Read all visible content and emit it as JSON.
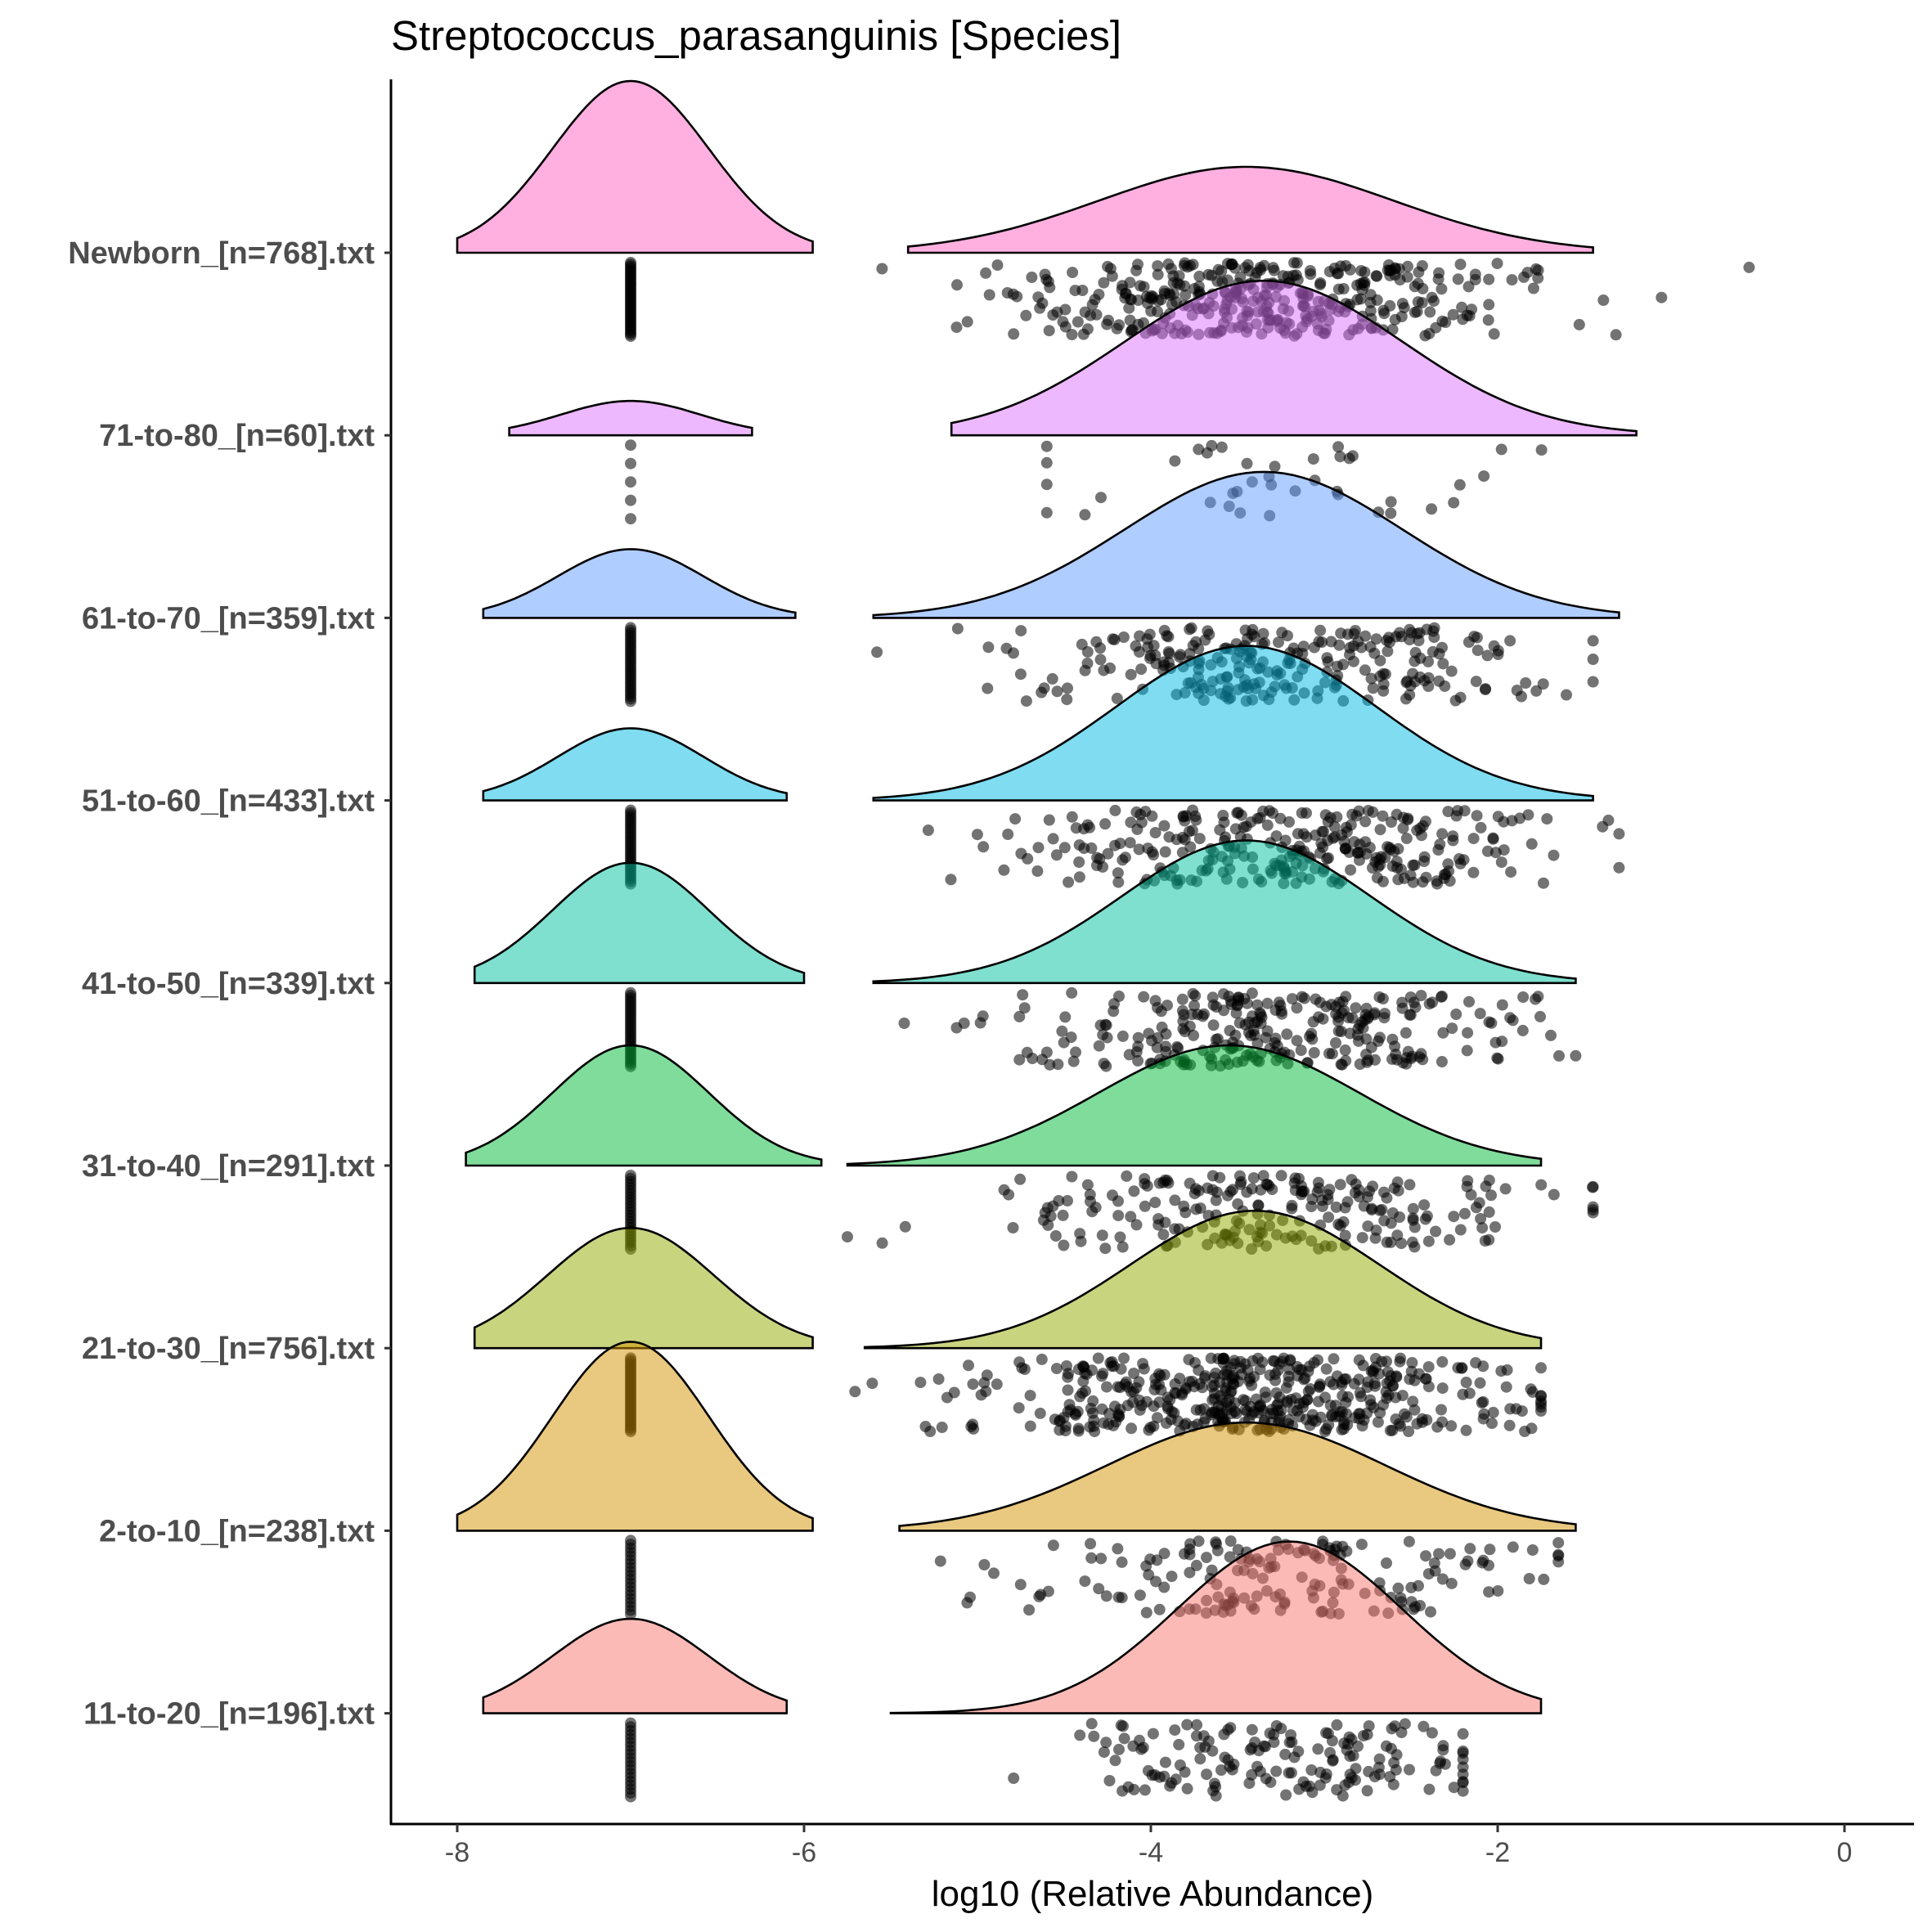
{
  "chart_data": {
    "type": "raincloud",
    "title": "Streptococcus_parasanguinis [Species]",
    "xlabel": "log10 (Relative Abundance)",
    "ylabel": "",
    "xlim": [
      -8.4,
      0.5
    ],
    "xticks": [
      -8,
      -6,
      -4,
      -2,
      0
    ],
    "xtick_labels": [
      "-8",
      "-6",
      "-4",
      "-2",
      "0"
    ],
    "grid": false,
    "legend": "none",
    "groups": [
      {
        "label": "Newborn_[n=768].txt",
        "n": 768,
        "color": "#FF61C3",
        "zero_peak": {
          "center": -7.0,
          "sd": 0.45,
          "height": 1.0,
          "range": [
            -8.0,
            -5.95
          ]
        },
        "main_peak": {
          "center": -3.45,
          "sd": 0.85,
          "height": 0.5,
          "range": [
            -5.4,
            -1.45
          ]
        },
        "points": {
          "count": 380,
          "zero_count": 40,
          "mean": -3.3,
          "sd": 0.75,
          "min": -5.55,
          "max": -0.55
        }
      },
      {
        "label": "71-to-80_[n=60].txt",
        "n": 60,
        "color": "#DB72FB",
        "zero_peak": {
          "center": -7.0,
          "sd": 0.4,
          "height": 0.2,
          "range": [
            -7.7,
            -6.3
          ]
        },
        "main_peak": {
          "center": -3.35,
          "sd": 0.8,
          "height": 0.9,
          "range": [
            -5.15,
            -1.2
          ]
        },
        "points": {
          "count": 40,
          "zero_count": 5,
          "mean": -3.3,
          "sd": 0.75,
          "min": -4.6,
          "max": -1.55
        }
      },
      {
        "label": "61-to-70_[n=359].txt",
        "n": 359,
        "color": "#619CFF",
        "zero_peak": {
          "center": -7.0,
          "sd": 0.42,
          "height": 0.4,
          "range": [
            -7.85,
            -6.05
          ]
        },
        "main_peak": {
          "center": -3.35,
          "sd": 0.8,
          "height": 0.85,
          "range": [
            -5.6,
            -1.3
          ]
        },
        "points": {
          "count": 260,
          "zero_count": 30,
          "mean": -3.3,
          "sd": 0.8,
          "min": -5.7,
          "max": -1.45
        }
      },
      {
        "label": "51-to-60_[n=433].txt",
        "n": 433,
        "color": "#00B9E3",
        "zero_peak": {
          "center": -7.0,
          "sd": 0.42,
          "height": 0.42,
          "range": [
            -7.85,
            -6.1
          ]
        },
        "main_peak": {
          "center": -3.45,
          "sd": 0.75,
          "height": 0.9,
          "range": [
            -5.6,
            -1.45
          ]
        },
        "points": {
          "count": 300,
          "zero_count": 30,
          "mean": -3.3,
          "sd": 0.8,
          "min": -5.6,
          "max": -1.3
        }
      },
      {
        "label": "41-to-50_[n=339].txt",
        "n": 339,
        "color": "#00C19F",
        "zero_peak": {
          "center": -7.0,
          "sd": 0.45,
          "height": 0.7,
          "range": [
            -7.9,
            -6.0
          ]
        },
        "main_peak": {
          "center": -3.45,
          "sd": 0.72,
          "height": 0.83,
          "range": [
            -5.6,
            -1.55
          ]
        },
        "points": {
          "count": 280,
          "zero_count": 30,
          "mean": -3.3,
          "sd": 0.75,
          "min": -5.65,
          "max": -1.55
        }
      },
      {
        "label": "31-to-40_[n=291].txt",
        "n": 291,
        "color": "#00BA38",
        "zero_peak": {
          "center": -7.0,
          "sd": 0.45,
          "height": 0.7,
          "range": [
            -7.95,
            -5.9
          ]
        },
        "main_peak": {
          "center": -3.55,
          "sd": 0.75,
          "height": 0.7,
          "range": [
            -5.75,
            -1.75
          ]
        },
        "points": {
          "count": 230,
          "zero_count": 25,
          "mean": -3.3,
          "sd": 0.75,
          "min": -5.75,
          "max": -1.45
        }
      },
      {
        "label": "21-to-30_[n=756].txt",
        "n": 756,
        "color": "#93AA00",
        "zero_peak": {
          "center": -7.0,
          "sd": 0.48,
          "height": 0.7,
          "range": [
            -7.9,
            -5.95
          ]
        },
        "main_peak": {
          "center": -3.4,
          "sd": 0.72,
          "height": 0.8,
          "range": [
            -5.65,
            -1.75
          ]
        },
        "points": {
          "count": 460,
          "zero_count": 40,
          "mean": -3.35,
          "sd": 0.75,
          "min": -6.0,
          "max": -1.75
        }
      },
      {
        "label": "2-to-10_[n=238].txt",
        "n": 238,
        "color": "#D39200",
        "zero_peak": {
          "center": -7.0,
          "sd": 0.45,
          "height": 1.1,
          "range": [
            -8.0,
            -5.95
          ]
        },
        "main_peak": {
          "center": -3.45,
          "sd": 0.8,
          "height": 0.63,
          "range": [
            -5.45,
            -1.55
          ]
        },
        "points": {
          "count": 170,
          "zero_count": 20,
          "mean": -3.3,
          "sd": 0.75,
          "min": -5.45,
          "max": -1.65
        }
      },
      {
        "label": "11-to-20_[n=196].txt",
        "n": 196,
        "color": "#F8766D",
        "zero_peak": {
          "center": -7.0,
          "sd": 0.45,
          "height": 0.55,
          "range": [
            -7.85,
            -6.1
          ]
        },
        "main_peak": {
          "center": -3.2,
          "sd": 0.65,
          "height": 1.0,
          "range": [
            -5.5,
            -1.75
          ]
        },
        "points": {
          "count": 160,
          "zero_count": 20,
          "mean": -3.2,
          "sd": 0.6,
          "min": -5.45,
          "max": -2.2
        }
      }
    ]
  }
}
